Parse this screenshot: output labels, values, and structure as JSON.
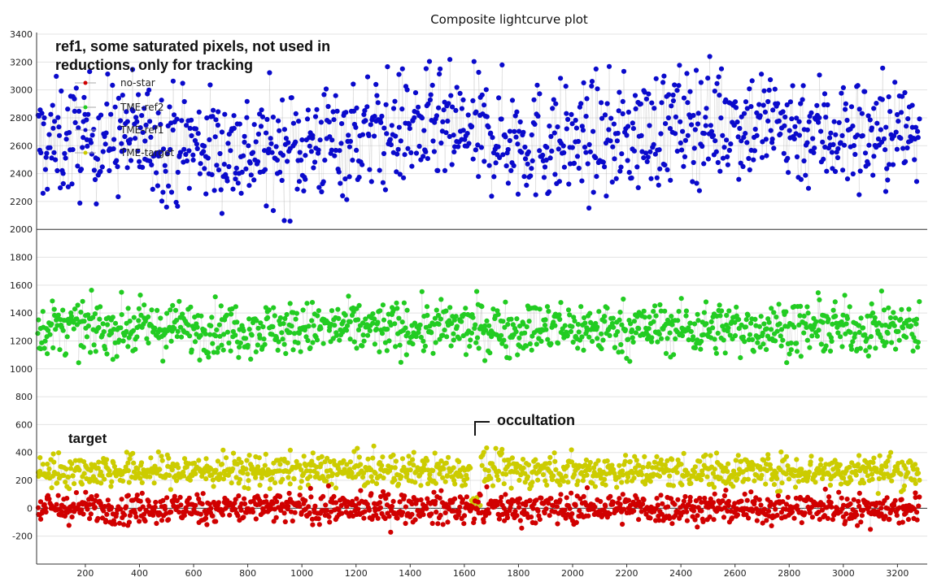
{
  "chart_data": {
    "type": "scatter",
    "title": "Composite lightcurve plot",
    "xlabel": "",
    "ylabel": "",
    "xlim": [
      20,
      3310
    ],
    "ylim": [
      -400,
      3400
    ],
    "x_ticks": [
      200,
      400,
      600,
      800,
      1000,
      1200,
      1400,
      1600,
      1800,
      2000,
      2200,
      2400,
      2600,
      2800,
      3000,
      3200
    ],
    "y_ticks": [
      -200,
      0,
      200,
      400,
      600,
      800,
      1000,
      1200,
      1400,
      1600,
      1800,
      2000,
      2200,
      2400,
      2600,
      2800,
      3000,
      3200,
      3400
    ],
    "grid": "horizontal",
    "reference_lines": [
      0,
      2000
    ],
    "legend_position": "top-left",
    "series": [
      {
        "name": "no-star",
        "color": "#d00000",
        "n_frames": 3280,
        "center": 0,
        "spread": 55,
        "range": [
          -220,
          160
        ]
      },
      {
        "name": "TME-ref2",
        "color": "#22cc22",
        "n_frames": 3280,
        "center": 1290,
        "spread": 95,
        "range": [
          850,
          1620
        ]
      },
      {
        "name": "TME-ref1",
        "color": "#0a0acc",
        "n_frames": 3280,
        "center": 2650,
        "spread": 210,
        "range": [
          1860,
          3270
        ]
      },
      {
        "name": "TME-target",
        "color": "#cccc00",
        "n_frames": 3280,
        "center": 270,
        "spread": 60,
        "range": [
          20,
          470
        ]
      }
    ],
    "annotations": [
      {
        "text": "ref1, some saturated pixels, not used in",
        "x": 35,
        "y": 3290
      },
      {
        "text": "reductions, only for tracking",
        "x": 35,
        "y": 3165
      },
      {
        "text": "target",
        "x": 130,
        "y": 510
      },
      {
        "text": "occultation",
        "x": 1640,
        "y": 610,
        "marker_x": 1630,
        "marker_y": 560
      }
    ]
  }
}
